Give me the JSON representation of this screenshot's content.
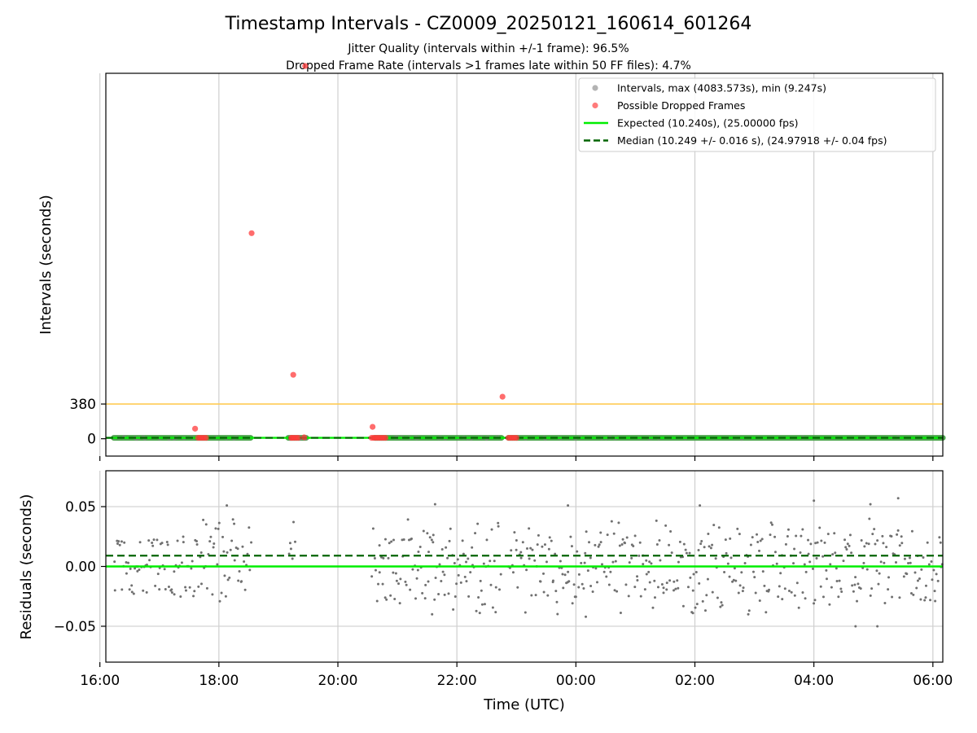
{
  "title": "Timestamp Intervals - CZ0009_20250121_160614_601264",
  "subtitle_lines": [
    "Jitter Quality (intervals within +/-1 frame): 96.5%",
    "Dropped Frame Rate (intervals >1 frames late within 50 FF files): 4.7%"
  ],
  "chart_data": [
    {
      "type": "scatter",
      "panel": "intervals",
      "ylabel": "Intervals (seconds)",
      "xlabel": "",
      "xlim": [
        "16:06",
        "06:10"
      ],
      "x_ticks": [
        "16:00",
        "18:00",
        "20:00",
        "22:00",
        "00:00",
        "02:00",
        "04:00",
        "06:00"
      ],
      "y_ticks": [
        0,
        380
      ],
      "ylim": [
        -190,
        4000
      ],
      "grid": "vertical",
      "legend_position": "top-right",
      "legend": [
        {
          "label": "Intervals, max (4083.573s), min (9.247s)",
          "kind": "marker",
          "color": "#a0a0a0"
        },
        {
          "label": "Possible Dropped Frames",
          "kind": "marker",
          "color": "#ff5a5a"
        },
        {
          "label": "Expected (10.240s), (25.00000 fps)",
          "kind": "solid-line",
          "color": "#00ee00"
        },
        {
          "label": "Median (10.249 +/- 0.016 s), (24.97918 +/- 0.04 fps)",
          "kind": "dashed-line",
          "color": "#006400"
        }
      ],
      "threshold_line": {
        "y": 380,
        "color": "#ffcc55"
      },
      "expected_line": {
        "y": 10.24,
        "color": "#00ee00"
      },
      "median_line": {
        "y": 10.249,
        "color": "#006400"
      },
      "colors": {
        "intervals": "#808080",
        "dropped": "#ff3b3b",
        "band": "#3a9a3a"
      },
      "interval_segments": [
        {
          "start": "16:14",
          "end": "18:32"
        },
        {
          "start": "19:10",
          "end": "19:28"
        },
        {
          "start": "20:37",
          "end": "22:45"
        },
        {
          "start": "22:52",
          "end": "06:10"
        }
      ],
      "dropped_frames": [
        {
          "time": "17:36",
          "interval": 110
        },
        {
          "time": "17:39",
          "interval": 10
        },
        {
          "time": "17:41",
          "interval": 10
        },
        {
          "time": "17:43",
          "interval": 10
        },
        {
          "time": "17:45",
          "interval": 10
        },
        {
          "time": "17:47",
          "interval": 10
        },
        {
          "time": "18:33",
          "interval": 2250
        },
        {
          "time": "19:13",
          "interval": 10
        },
        {
          "time": "19:14",
          "interval": 10
        },
        {
          "time": "19:16",
          "interval": 10
        },
        {
          "time": "19:18",
          "interval": 10
        },
        {
          "time": "19:20",
          "interval": 10
        },
        {
          "time": "19:15",
          "interval": 700
        },
        {
          "time": "19:26",
          "interval": 15
        },
        {
          "time": "19:27",
          "interval": 4080
        },
        {
          "time": "20:35",
          "interval": 130
        },
        {
          "time": "20:34",
          "interval": 10
        },
        {
          "time": "20:36",
          "interval": 10
        },
        {
          "time": "20:38",
          "interval": 10
        },
        {
          "time": "20:40",
          "interval": 10
        },
        {
          "time": "20:42",
          "interval": 10
        },
        {
          "time": "20:44",
          "interval": 10
        },
        {
          "time": "20:46",
          "interval": 10
        },
        {
          "time": "20:48",
          "interval": 10
        },
        {
          "time": "22:46",
          "interval": 460
        },
        {
          "time": "22:52",
          "interval": 10
        },
        {
          "time": "22:54",
          "interval": 10
        },
        {
          "time": "22:56",
          "interval": 10
        },
        {
          "time": "22:58",
          "interval": 10
        },
        {
          "time": "23:00",
          "interval": 10
        }
      ]
    },
    {
      "type": "scatter",
      "panel": "residuals",
      "ylabel": "Residuals (seconds)",
      "xlabel": "Time (UTC)",
      "xlim": [
        "16:06",
        "06:10"
      ],
      "x_ticks": [
        "16:00",
        "18:00",
        "20:00",
        "22:00",
        "00:00",
        "02:00",
        "04:00",
        "06:00"
      ],
      "y_ticks": [
        "0.05",
        "0.00",
        "−0.05"
      ],
      "y_tick_values": [
        0.05,
        0.0,
        -0.05
      ],
      "ylim": [
        -0.08,
        0.08
      ],
      "grid": "both",
      "expected_line": {
        "y": 0.0,
        "color": "#00ee00"
      },
      "median_line": {
        "y": 0.009,
        "color": "#006400"
      },
      "point_color": "#707070",
      "bands": [
        0.02,
        0.0,
        -0.02
      ],
      "band_spread_early": 0.0025,
      "band_spread_late": 0.006,
      "noise_fraction_late": 0.35,
      "segments": [
        {
          "start": "16:14",
          "end": "17:40",
          "style": "banded"
        },
        {
          "start": "17:40",
          "end": "18:32",
          "style": "mixed"
        },
        {
          "start": "19:10",
          "end": "19:16",
          "style": "mixed"
        },
        {
          "start": "20:34",
          "end": "22:44",
          "style": "mixed"
        },
        {
          "start": "22:52",
          "end": "06:10",
          "style": "mixed"
        }
      ],
      "outliers": [
        {
          "time": "18:08",
          "residual": 0.051
        },
        {
          "time": "21:38",
          "residual": 0.052
        },
        {
          "time": "21:35",
          "residual": -0.04
        },
        {
          "time": "23:52",
          "residual": 0.051
        },
        {
          "time": "00:10",
          "residual": -0.042
        },
        {
          "time": "01:58",
          "residual": -0.039
        },
        {
          "time": "02:05",
          "residual": 0.051
        },
        {
          "time": "04:00",
          "residual": 0.055
        },
        {
          "time": "04:42",
          "residual": -0.05
        },
        {
          "time": "04:57",
          "residual": 0.052
        },
        {
          "time": "05:04",
          "residual": -0.05
        },
        {
          "time": "05:25",
          "residual": 0.057
        }
      ]
    }
  ]
}
